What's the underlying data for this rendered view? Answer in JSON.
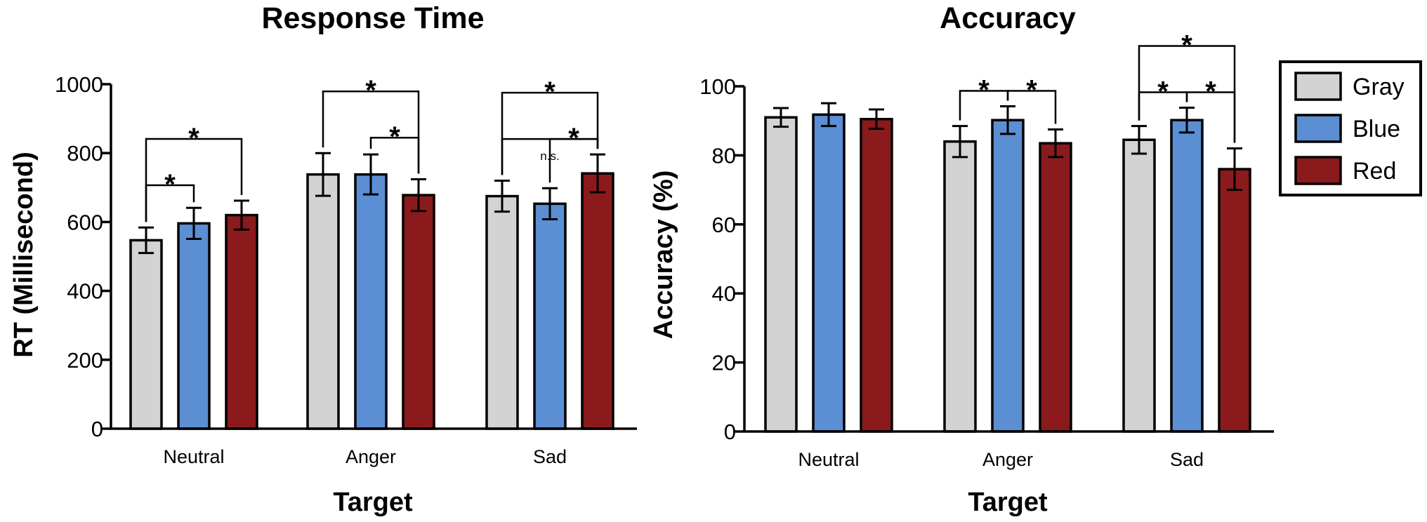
{
  "legend": {
    "items": [
      {
        "name": "Gray",
        "color": "#d3d3d3"
      },
      {
        "name": "Blue",
        "color": "#5b8ed3"
      },
      {
        "name": "Red",
        "color": "#8b1a1c"
      }
    ]
  },
  "chart_data": [
    {
      "type": "bar",
      "title": "Response Time",
      "xlabel": "Target",
      "ylabel": "RT (Millisecond)",
      "ylim": [
        0,
        1000
      ],
      "yticks": [
        0,
        200,
        400,
        600,
        800,
        1000
      ],
      "categories": [
        "Neutral",
        "Anger",
        "Sad"
      ],
      "series": [
        {
          "name": "Gray",
          "values": [
            547,
            738,
            675
          ],
          "errors": [
            37,
            62,
            45
          ]
        },
        {
          "name": "Blue",
          "values": [
            596,
            738,
            653
          ],
          "errors": [
            45,
            58,
            45
          ]
        },
        {
          "name": "Red",
          "values": [
            620,
            678,
            741
          ],
          "errors": [
            42,
            46,
            55
          ]
        }
      ],
      "significance": [
        {
          "group": 0,
          "from": 0,
          "to": 1,
          "label": "*",
          "level": 1
        },
        {
          "group": 0,
          "from": 0,
          "to": 2,
          "label": "*",
          "level": 2
        },
        {
          "group": 1,
          "from": 1,
          "to": 2,
          "label": "*",
          "level": 1
        },
        {
          "group": 1,
          "from": 0,
          "to": 2,
          "label": "*",
          "level": 2
        },
        {
          "group": 2,
          "from": 0,
          "to": 2,
          "label": "n.s.",
          "level": 1
        },
        {
          "group": 2,
          "from": 1,
          "to": 2,
          "label": "*",
          "level": 1
        },
        {
          "group": 2,
          "from": 0,
          "to": 2,
          "label": "*",
          "level": 2
        }
      ]
    },
    {
      "type": "bar",
      "title": "Accuracy",
      "xlabel": "Target",
      "ylabel": "Accuracy (%)",
      "ylim": [
        0,
        100
      ],
      "yticks": [
        0,
        20,
        40,
        60,
        80,
        100
      ],
      "categories": [
        "Neutral",
        "Anger",
        "Sad"
      ],
      "series": [
        {
          "name": "Gray",
          "values": [
            91,
            84,
            84.5
          ],
          "errors": [
            2.7,
            4.5,
            4.0
          ]
        },
        {
          "name": "Blue",
          "values": [
            91.8,
            90.2,
            90.2
          ],
          "errors": [
            3.3,
            4.0,
            3.6
          ]
        },
        {
          "name": "Red",
          "values": [
            90.5,
            83.5,
            76
          ],
          "errors": [
            2.8,
            4.0,
            6.0
          ]
        }
      ],
      "significance": [
        {
          "group": 1,
          "from": 0,
          "to": 1,
          "label": "*",
          "level": 1
        },
        {
          "group": 1,
          "from": 1,
          "to": 2,
          "label": "*",
          "level": 1
        },
        {
          "group": 2,
          "from": 0,
          "to": 1,
          "label": "*",
          "level": 1
        },
        {
          "group": 2,
          "from": 1,
          "to": 2,
          "label": "*",
          "level": 1
        },
        {
          "group": 2,
          "from": 0,
          "to": 2,
          "label": "*",
          "level": 2
        }
      ]
    }
  ]
}
